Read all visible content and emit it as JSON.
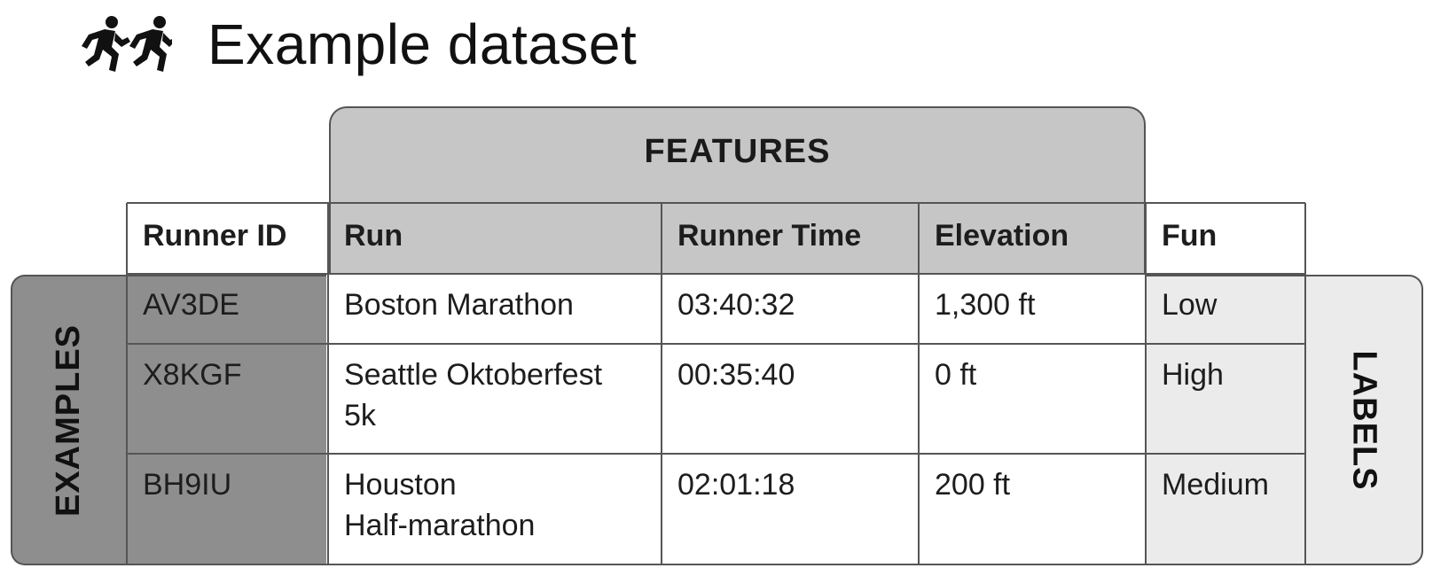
{
  "title": "Example dataset",
  "icons": {
    "title_icon": "runners-icon"
  },
  "bands": {
    "features": "FEATURES",
    "examples": "EXAMPLES",
    "labels": "LABELS"
  },
  "table": {
    "headers": [
      "Runner ID",
      "Run",
      "Runner Time",
      "Elevation",
      "Fun"
    ],
    "rows": [
      [
        "AV3DE",
        "Boston Marathon",
        "03:40:32",
        "1,300 ft",
        "Low"
      ],
      [
        "X8KGF",
        "Seattle Oktoberfest\n5k",
        "00:35:40",
        "0 ft",
        "High"
      ],
      [
        "BH9IU",
        "Houston\nHalf-marathon",
        "02:01:18",
        "200 ft",
        "Medium"
      ]
    ]
  },
  "colors": {
    "features_fill": "#c6c6c6",
    "examples_fill": "#8e8e8e",
    "labels_fill": "#ebebeb",
    "border": "#555555"
  }
}
